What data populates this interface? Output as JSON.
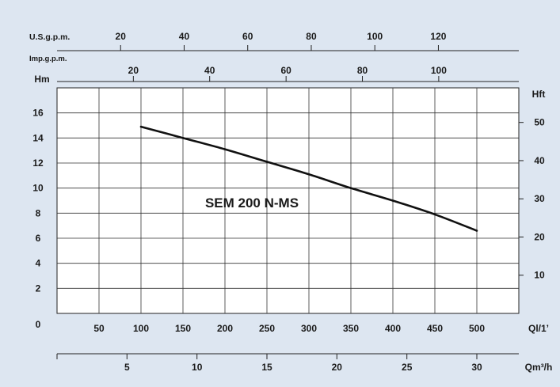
{
  "chart_data": {
    "type": "line",
    "series": [
      {
        "name": "SEM 200 N-MS",
        "x": [
          100,
          150,
          200,
          250,
          300,
          350,
          400,
          450,
          500
        ],
        "y": [
          14.9,
          14.0,
          13.1,
          12.1,
          11.1,
          10.0,
          9.0,
          7.9,
          6.6
        ]
      }
    ],
    "xlabel": "Ql/1’",
    "ylabel": "Hm",
    "xlim": [
      0,
      550
    ],
    "ylim": [
      0,
      18
    ],
    "x_ticks": [
      "50",
      "100",
      "150",
      "200",
      "250",
      "300",
      "350",
      "400",
      "450",
      "500"
    ],
    "y_ticks": [
      "0",
      "2",
      "4",
      "6",
      "8",
      "10",
      "12",
      "14",
      "16"
    ],
    "grid": true,
    "secondary_axes": {
      "right": {
        "label": "Hft",
        "ticks": [
          {
            "label": "10",
            "hm": 3.048
          },
          {
            "label": "20",
            "hm": 6.096
          },
          {
            "label": "30",
            "hm": 9.144
          },
          {
            "label": "40",
            "hm": 12.192
          },
          {
            "label": "50",
            "hm": 15.24
          }
        ]
      },
      "us_gpm": {
        "label": "U.S.g.p.m.",
        "ticks": [
          {
            "label": "20",
            "lpm": 75.7
          },
          {
            "label": "40",
            "lpm": 151.4
          },
          {
            "label": "60",
            "lpm": 227.1
          },
          {
            "label": "80",
            "lpm": 302.8
          },
          {
            "label": "100",
            "lpm": 378.5
          },
          {
            "label": "120",
            "lpm": 454.2
          }
        ]
      },
      "imp_gpm": {
        "label": "Imp.g.p.m.",
        "ticks": [
          {
            "label": "20",
            "lpm": 90.9
          },
          {
            "label": "40",
            "lpm": 181.8
          },
          {
            "label": "60",
            "lpm": 272.8
          },
          {
            "label": "80",
            "lpm": 363.7
          },
          {
            "label": "100",
            "lpm": 454.6
          }
        ]
      },
      "m3h": {
        "label": "Qm³/h",
        "ticks": [
          {
            "label": "5",
            "lpm": 83.3
          },
          {
            "label": "10",
            "lpm": 166.7
          },
          {
            "label": "15",
            "lpm": 250
          },
          {
            "label": "20",
            "lpm": 333.3
          },
          {
            "label": "25",
            "lpm": 416.7
          },
          {
            "label": "30",
            "lpm": 500
          }
        ]
      }
    }
  },
  "labels": {
    "curve_label": "SEM 200 N-MS"
  },
  "colors": {
    "background": "#dde6f1",
    "plot": "#ffffff",
    "line": "#111111"
  }
}
